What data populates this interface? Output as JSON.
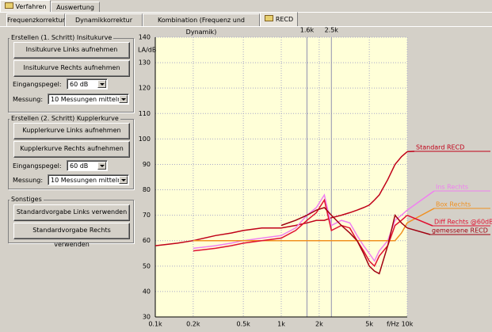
{
  "tabs": {
    "top": [
      "Verfahren",
      "Auswertung"
    ],
    "sub": [
      "Frequenzkorrektur",
      "Dynamikkorrektur",
      "Kombination (Frequenz und Dynamik)",
      "RECD"
    ]
  },
  "panel": {
    "groups": [
      {
        "title": "Erstellen (1. Schritt) Insitukurve",
        "buttons": [
          "Insitukurve Links aufnehmen",
          "Insitukurve Rechts aufnehmen"
        ],
        "fields": [
          {
            "label": "Eingangspegel:",
            "value": "60 dB"
          },
          {
            "label": "Messung:",
            "value": "10 Messungen mitteln"
          }
        ]
      },
      {
        "title": "Erstellen (2. Schritt) Kupplerkurve",
        "buttons": [
          "Kupplerkurve Links aufnehmen",
          "Kupplerkurve Rechts aufnehmen"
        ],
        "fields": [
          {
            "label": "Eingangspegel:",
            "value": "60 dB"
          },
          {
            "label": "Messung:",
            "value": "10 Messungen mitteln"
          }
        ]
      },
      {
        "title": "Sonstiges",
        "buttons": [
          "Standardvorgabe Links verwenden",
          "Standardvorgabe Rechts verwenden"
        ]
      }
    ]
  },
  "chart_data": {
    "type": "line",
    "y_label": "LA/dB",
    "x_label": "f/Hz",
    "log_x": true,
    "grid": true,
    "x": [
      100,
      150,
      200,
      300,
      400,
      500,
      700,
      1000,
      1300,
      1600,
      1900,
      2200,
      2500,
      3000,
      3500,
      4000,
      4500,
      5000,
      5500,
      6000,
      7000,
      8000,
      9000,
      10000
    ],
    "xlim": [
      100,
      10000
    ],
    "xticks": [
      {
        "value": 100,
        "label": "0.1k"
      },
      {
        "value": 200,
        "label": "0.2k"
      },
      {
        "value": 500,
        "label": "0.5k"
      },
      {
        "value": 1000,
        "label": "1k"
      },
      {
        "value": 2000,
        "label": "2k"
      },
      {
        "value": 5000,
        "label": "5k"
      },
      {
        "value": 10000,
        "label": "10k"
      }
    ],
    "top_ticks": [
      {
        "value": 1600,
        "label": "1.6k"
      },
      {
        "value": 2500,
        "label": "2.5k"
      }
    ],
    "ylim": [
      30,
      140
    ],
    "yticks": [
      30,
      40,
      50,
      60,
      70,
      80,
      90,
      100,
      110,
      120,
      130,
      140
    ],
    "series": [
      {
        "name": "Standard RECD",
        "color": "#c00018",
        "values": [
          58,
          59,
          60,
          62,
          63,
          64,
          65,
          65,
          66,
          67,
          68,
          68,
          69,
          70,
          71,
          72,
          73,
          74,
          76,
          78,
          84,
          90,
          93,
          95
        ]
      },
      {
        "name": "Ins Rechts",
        "color": "#f080f0",
        "values": [
          null,
          null,
          57,
          58,
          59,
          60,
          61,
          62,
          65,
          70,
          73,
          78,
          66,
          68,
          67,
          62,
          58,
          55,
          52,
          56,
          60,
          68,
          70,
          72
        ]
      },
      {
        "name": "Box Rechts",
        "color": "#f09020",
        "values": [
          null,
          null,
          60,
          60,
          60,
          60,
          60,
          60,
          60,
          60,
          60,
          60,
          60,
          60,
          60,
          60,
          60,
          60,
          60,
          60,
          60,
          60,
          63,
          67
        ]
      },
      {
        "name": "Diff Rechts @60dB",
        "color": "#e01030",
        "values": [
          null,
          null,
          56,
          57,
          58,
          59,
          60,
          61,
          64,
          68,
          71,
          76,
          64,
          66,
          65,
          60,
          56,
          52,
          50,
          54,
          58,
          66,
          68,
          70
        ]
      },
      {
        "name": "gemessene RECD",
        "color": "#a00010",
        "values": [
          null,
          null,
          null,
          null,
          null,
          null,
          null,
          66,
          68,
          70,
          72,
          73,
          70,
          66,
          63,
          60,
          55,
          50,
          48,
          47,
          58,
          70,
          67,
          65
        ]
      }
    ]
  }
}
